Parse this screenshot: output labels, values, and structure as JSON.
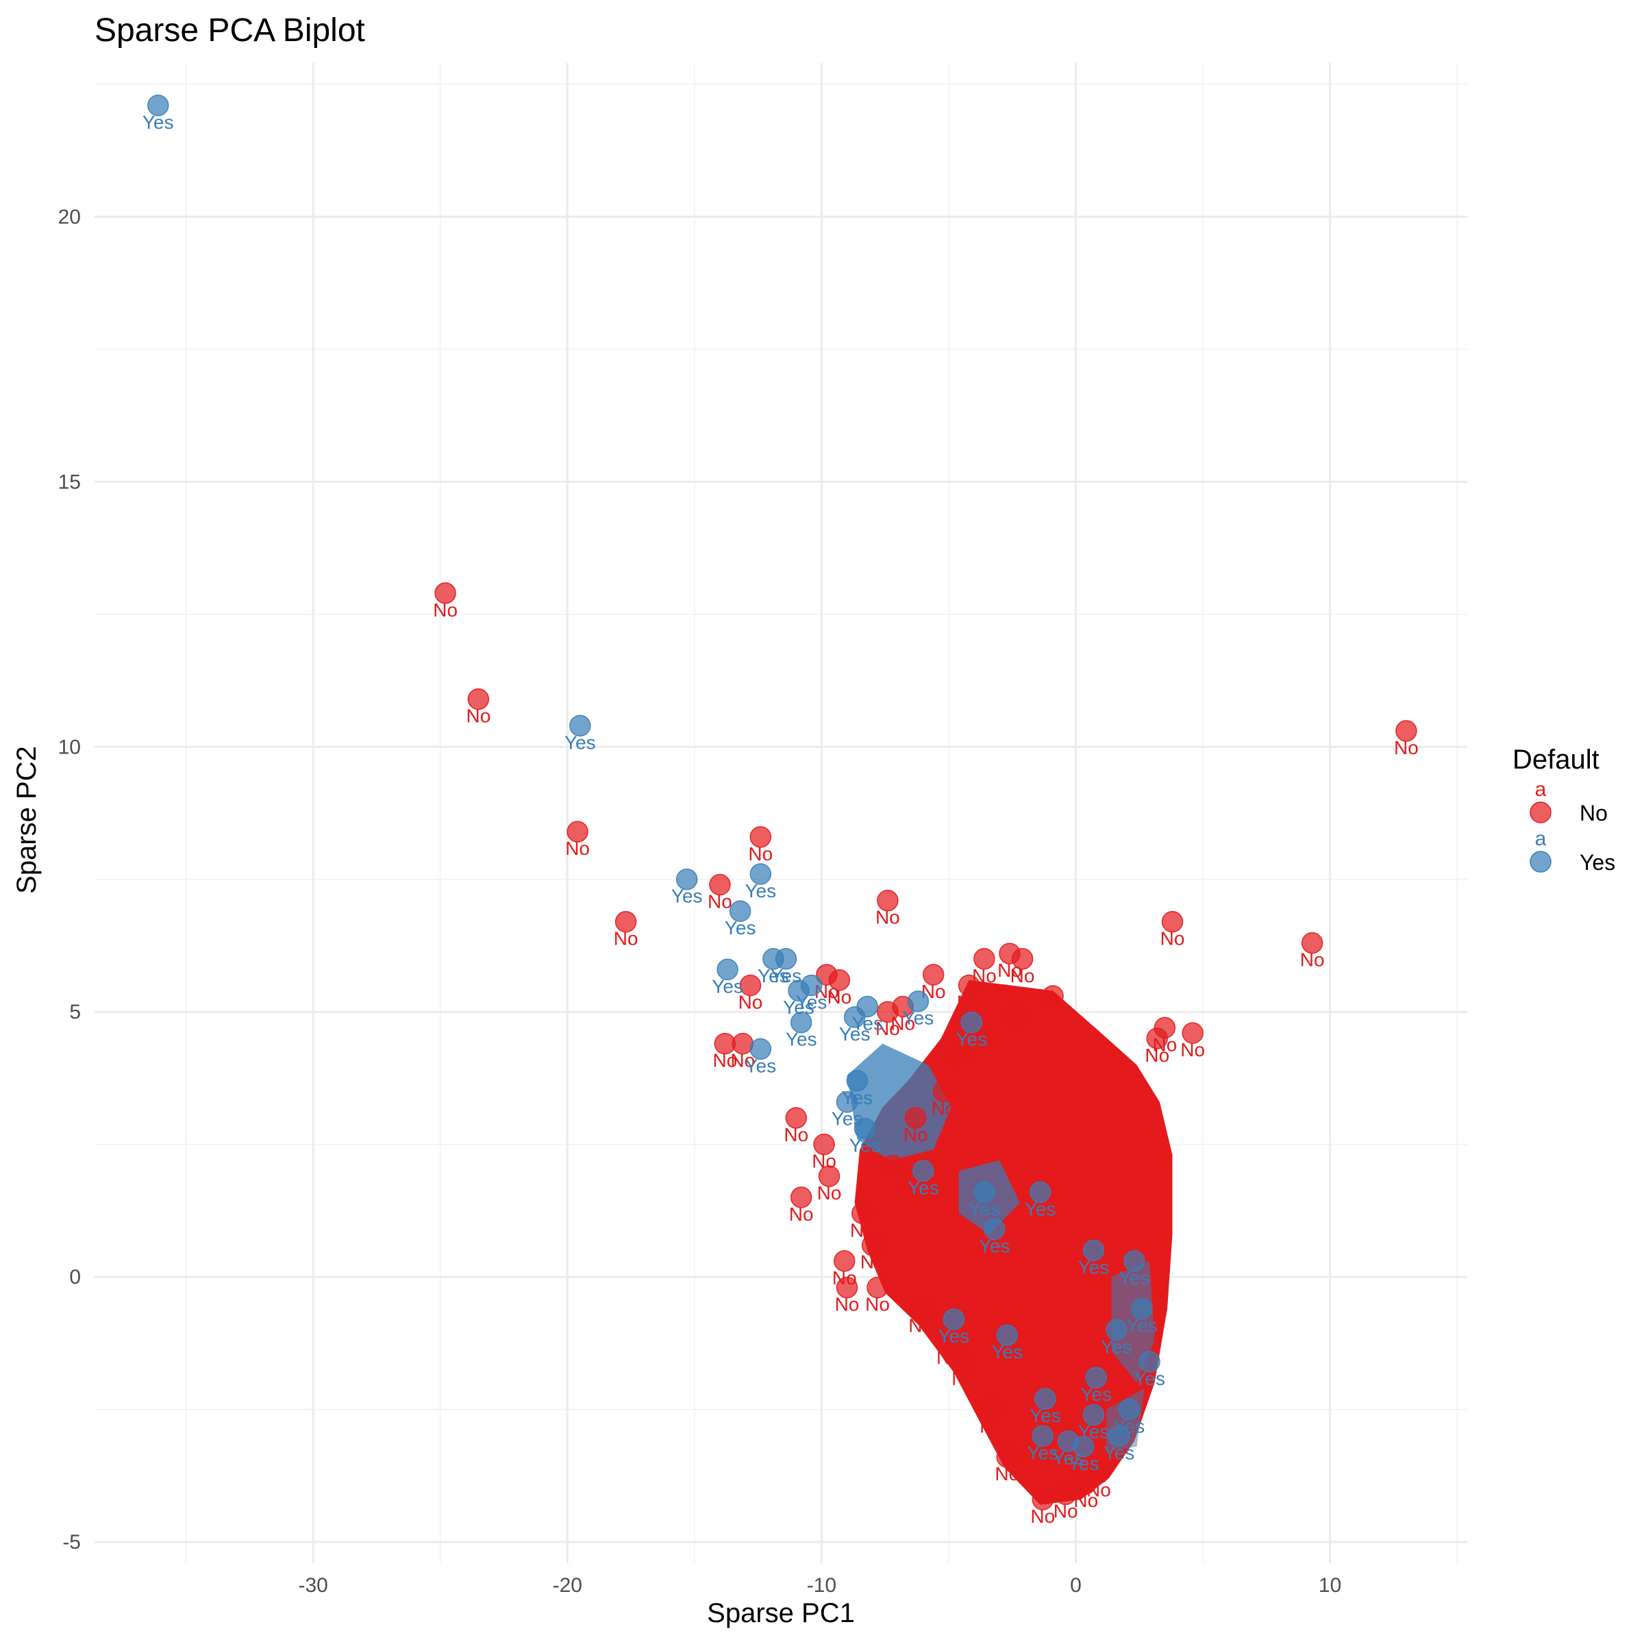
{
  "chart_data": {
    "type": "scatter",
    "title": "Sparse PCA Biplot",
    "xlabel": "Sparse PC1",
    "ylabel": "Sparse PC2",
    "xlim": [
      -38.6,
      15.4
    ],
    "ylim": [
      -5.4,
      22.9
    ],
    "x_major_ticks": [
      -30,
      -20,
      -10,
      0,
      10
    ],
    "x_minor_ticks": [
      -35,
      -25,
      -15,
      -5,
      5,
      15
    ],
    "y_major_ticks": [
      -5,
      0,
      5,
      10,
      15,
      20
    ],
    "y_minor_ticks": [
      -2.5,
      2.5,
      7.5,
      12.5,
      17.5,
      22.5
    ],
    "x_tick_labels": [
      "-30",
      "-20",
      "-10",
      "0",
      "10"
    ],
    "y_tick_labels": [
      "-5",
      "0",
      "5",
      "10",
      "15",
      "20"
    ],
    "grid": true,
    "legend": {
      "title": "Default",
      "position": "right",
      "key_glyph_text": "a",
      "entries": [
        {
          "label": "No",
          "color": "#E41A1C"
        },
        {
          "label": "Yes",
          "color": "#377EB8"
        }
      ]
    },
    "point_alpha": 0.7,
    "series": [
      {
        "name": "No",
        "color": "#E41A1C",
        "points": [
          [
            -24.8,
            12.9
          ],
          [
            -23.5,
            10.9
          ],
          [
            -19.6,
            8.4
          ],
          [
            -17.7,
            6.7
          ],
          [
            -14.0,
            7.4
          ],
          [
            -12.4,
            8.3
          ],
          [
            -7.4,
            7.1
          ],
          [
            3.8,
            6.7
          ],
          [
            9.3,
            6.3
          ],
          [
            13.0,
            10.3
          ],
          [
            -13.8,
            4.4
          ],
          [
            -13.1,
            4.4
          ],
          [
            -12.8,
            5.5
          ],
          [
            -11.0,
            3.0
          ],
          [
            -10.8,
            1.5
          ],
          [
            -9.9,
            2.5
          ],
          [
            -9.7,
            1.9
          ],
          [
            -9.1,
            0.3
          ],
          [
            -9.0,
            -0.2
          ],
          [
            -5.6,
            5.7
          ],
          [
            -3.6,
            6.0
          ],
          [
            -2.6,
            6.1
          ],
          [
            -2.1,
            6.0
          ],
          [
            3.5,
            4.7
          ],
          [
            3.2,
            4.5
          ],
          [
            4.6,
            4.6
          ],
          [
            -7.4,
            5.0
          ],
          [
            -6.8,
            5.1
          ],
          [
            -9.8,
            5.7
          ],
          [
            -9.3,
            5.6
          ],
          [
            -4.2,
            5.5
          ],
          [
            -0.9,
            5.3
          ],
          [
            -1.3,
            -4.2
          ],
          [
            -0.4,
            -4.1
          ],
          [
            0.4,
            -3.9
          ],
          [
            0.9,
            -3.7
          ],
          [
            -2.7,
            -3.4
          ],
          [
            -3.3,
            -2.5
          ],
          [
            -4.4,
            -1.6
          ],
          [
            -5.0,
            -1.2
          ],
          [
            -6.1,
            -0.6
          ],
          [
            -7.8,
            -0.2
          ],
          [
            -8.0,
            0.6
          ],
          [
            -8.4,
            1.2
          ],
          [
            -7.2,
            2.1
          ],
          [
            -6.3,
            3.0
          ],
          [
            -5.2,
            3.5
          ],
          [
            -4.6,
            4.2
          ],
          [
            -3.8,
            4.6
          ],
          [
            -2.4,
            4.9
          ]
        ]
      },
      {
        "name": "Yes",
        "color": "#377EB8",
        "points": [
          [
            -36.1,
            22.1
          ],
          [
            -19.5,
            10.4
          ],
          [
            -15.3,
            7.5
          ],
          [
            -12.4,
            7.6
          ],
          [
            -13.2,
            6.9
          ],
          [
            -13.7,
            5.8
          ],
          [
            -11.9,
            6.0
          ],
          [
            -11.4,
            6.0
          ],
          [
            -12.4,
            4.3
          ],
          [
            -10.9,
            5.4
          ],
          [
            -10.4,
            5.5
          ],
          [
            -10.8,
            4.8
          ],
          [
            -8.2,
            5.1
          ],
          [
            -8.7,
            4.9
          ],
          [
            -6.2,
            5.2
          ],
          [
            -4.1,
            4.8
          ],
          [
            -8.6,
            3.7
          ],
          [
            -9.0,
            3.3
          ],
          [
            -8.3,
            2.8
          ],
          [
            -6.0,
            2.0
          ],
          [
            -3.6,
            1.6
          ],
          [
            -3.2,
            0.9
          ],
          [
            -1.4,
            1.6
          ],
          [
            -4.8,
            -0.8
          ],
          [
            -2.7,
            -1.1
          ],
          [
            0.7,
            0.5
          ],
          [
            2.3,
            0.3
          ],
          [
            2.6,
            -0.6
          ],
          [
            1.6,
            -1.0
          ],
          [
            0.8,
            -1.9
          ],
          [
            2.9,
            -1.6
          ],
          [
            -1.2,
            -2.3
          ],
          [
            0.7,
            -2.6
          ],
          [
            2.1,
            -2.5
          ],
          [
            -1.3,
            -3.0
          ],
          [
            -0.3,
            -3.1
          ],
          [
            0.3,
            -3.2
          ],
          [
            1.7,
            -3.0
          ]
        ]
      }
    ]
  }
}
